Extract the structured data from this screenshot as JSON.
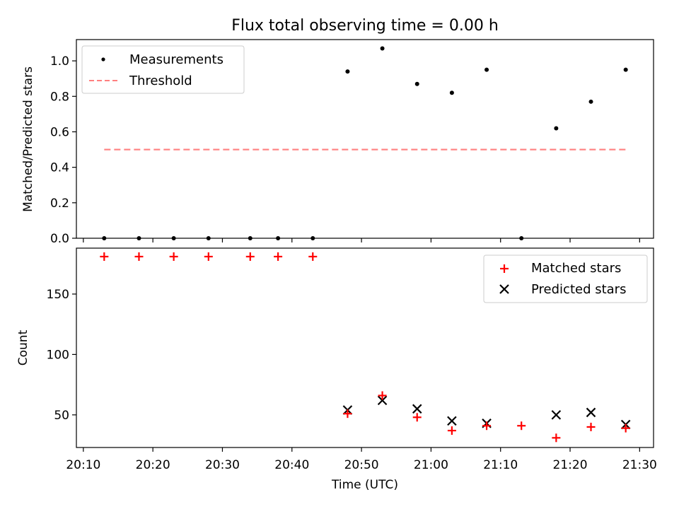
{
  "figure": {
    "title": "Flux total observing time = 0.00 h"
  },
  "chart_data": [
    {
      "type": "scatter",
      "ylabel": "Matched/Predicted stars",
      "xlabel": "",
      "ylim": [
        0,
        1.12
      ],
      "yticks": [
        0.0,
        0.2,
        0.4,
        0.6,
        0.8,
        1.0
      ],
      "ytick_labels": [
        "0.0",
        "0.2",
        "0.4",
        "0.6",
        "0.8",
        "1.0"
      ],
      "legend_position": "top-left",
      "series": [
        {
          "name": "Measurements",
          "marker": "dot",
          "color": "#000000",
          "x": [
            "20:13",
            "20:18",
            "20:23",
            "20:28",
            "20:34",
            "20:38",
            "20:43",
            "20:48",
            "20:53",
            "20:58",
            "21:03",
            "21:08",
            "21:13",
            "21:18",
            "21:23",
            "21:28"
          ],
          "y": [
            0.0,
            0.0,
            0.0,
            0.0,
            0.0,
            0.0,
            0.0,
            0.94,
            1.07,
            0.87,
            0.82,
            0.95,
            0.0,
            0.62,
            0.77,
            0.95
          ]
        },
        {
          "name": "Threshold",
          "marker": "dashed-line",
          "color": "#ff7f7f",
          "x": [
            "20:13",
            "21:28"
          ],
          "y": [
            0.5,
            0.5
          ]
        }
      ]
    },
    {
      "type": "scatter",
      "ylabel": "Count",
      "xlabel": "Time (UTC)",
      "ylim": [
        23,
        188
      ],
      "yticks": [
        50,
        100,
        150
      ],
      "ytick_labels": [
        "50",
        "100",
        "150"
      ],
      "xlim": [
        "20:09",
        "21:32"
      ],
      "xticks": [
        "20:10",
        "20:20",
        "20:30",
        "20:40",
        "20:50",
        "21:00",
        "21:10",
        "21:20",
        "21:30"
      ],
      "legend_position": "top-right",
      "series": [
        {
          "name": "Matched stars",
          "marker": "plus",
          "color": "#ff0000",
          "x": [
            "20:13",
            "20:18",
            "20:23",
            "20:28",
            "20:34",
            "20:38",
            "20:43",
            "20:48",
            "20:53",
            "20:58",
            "21:03",
            "21:08",
            "21:13",
            "21:18",
            "21:23",
            "21:28"
          ],
          "y": [
            181,
            181,
            181,
            181,
            181,
            181,
            181,
            51,
            66,
            48,
            37,
            41,
            41,
            31,
            40,
            39
          ]
        },
        {
          "name": "Predicted stars",
          "marker": "x",
          "color": "#000000",
          "x": [
            "20:48",
            "20:53",
            "20:58",
            "21:03",
            "21:08",
            "21:18",
            "21:23",
            "21:28"
          ],
          "y": [
            54,
            62,
            55,
            45,
            43,
            50,
            52,
            42
          ]
        }
      ]
    }
  ]
}
